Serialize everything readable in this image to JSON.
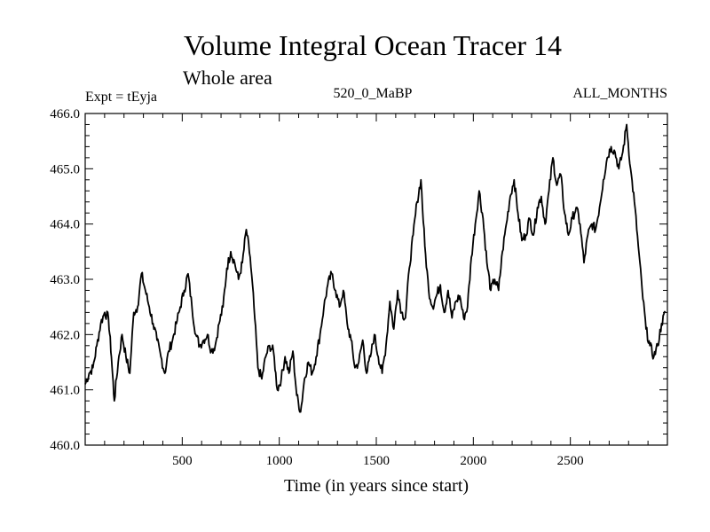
{
  "chart_data": {
    "type": "line",
    "title": "Volume Integral Ocean Tracer 14",
    "subtitle": "Whole area",
    "header_left": "Expt = tEyja",
    "header_center": "520_0_MaBP",
    "header_right": "ALL_MONTHS",
    "xlabel": "Time (in years since start)",
    "ylabel": "",
    "xlim": [
      0,
      3000
    ],
    "ylim": [
      460.0,
      466.0
    ],
    "x_ticks": [
      500,
      1000,
      1500,
      2000,
      2500
    ],
    "x_tick_labels": [
      "500",
      "1000",
      "1500",
      "2000",
      "2500"
    ],
    "y_ticks": [
      460.0,
      461.0,
      462.0,
      463.0,
      464.0,
      465.0,
      466.0
    ],
    "y_tick_labels": [
      "460.0",
      "461.0",
      "462.0",
      "463.0",
      "464.0",
      "465.0",
      "466.0"
    ],
    "grid": false,
    "series": [
      {
        "name": "tracer14",
        "color": "#000000",
        "x": [
          0,
          20,
          40,
          60,
          80,
          100,
          120,
          135,
          150,
          170,
          190,
          210,
          230,
          250,
          270,
          290,
          310,
          330,
          350,
          370,
          390,
          410,
          430,
          450,
          470,
          490,
          510,
          530,
          550,
          570,
          590,
          610,
          630,
          650,
          670,
          690,
          710,
          730,
          750,
          770,
          790,
          810,
          830,
          850,
          870,
          890,
          910,
          930,
          950,
          970,
          990,
          1010,
          1030,
          1050,
          1070,
          1090,
          1110,
          1130,
          1150,
          1170,
          1190,
          1210,
          1230,
          1250,
          1270,
          1290,
          1310,
          1330,
          1350,
          1370,
          1390,
          1410,
          1430,
          1450,
          1470,
          1490,
          1510,
          1530,
          1550,
          1570,
          1590,
          1610,
          1630,
          1650,
          1670,
          1690,
          1710,
          1730,
          1750,
          1770,
          1790,
          1810,
          1830,
          1850,
          1870,
          1890,
          1910,
          1930,
          1950,
          1970,
          1990,
          2010,
          2030,
          2050,
          2070,
          2090,
          2110,
          2130,
          2150,
          2170,
          2190,
          2210,
          2230,
          2250,
          2270,
          2290,
          2310,
          2330,
          2350,
          2370,
          2390,
          2410,
          2430,
          2450,
          2470,
          2490,
          2510,
          2530,
          2550,
          2570,
          2590,
          2610,
          2630,
          2650,
          2670,
          2690,
          2710,
          2730,
          2750,
          2770,
          2790,
          2810,
          2830,
          2850,
          2870,
          2890,
          2910,
          2930,
          2950,
          2970,
          2990
        ],
        "values": [
          461.1,
          461.3,
          461.4,
          461.8,
          462.2,
          462.4,
          462.3,
          461.6,
          460.8,
          461.5,
          462.0,
          461.6,
          461.3,
          462.4,
          462.5,
          463.1,
          462.8,
          462.5,
          462.2,
          461.9,
          461.6,
          461.3,
          461.7,
          461.9,
          462.2,
          462.5,
          462.8,
          463.1,
          462.5,
          462.0,
          461.8,
          461.9,
          462.0,
          461.7,
          461.8,
          462.2,
          462.5,
          463.2,
          463.5,
          463.3,
          463.0,
          463.3,
          463.9,
          463.4,
          462.5,
          461.4,
          461.2,
          461.6,
          461.8,
          461.7,
          461.0,
          461.2,
          461.6,
          461.3,
          461.7,
          460.9,
          460.6,
          461.2,
          461.5,
          461.3,
          461.6,
          462.0,
          462.5,
          462.9,
          463.1,
          462.8,
          462.5,
          462.8,
          462.2,
          461.9,
          461.4,
          461.5,
          461.9,
          461.3,
          461.6,
          462.0,
          461.6,
          461.3,
          461.8,
          462.6,
          462.1,
          462.8,
          462.4,
          462.3,
          463.2,
          463.8,
          464.4,
          464.8,
          463.6,
          462.8,
          462.5,
          462.7,
          462.9,
          462.4,
          462.8,
          462.3,
          462.6,
          462.7,
          462.3,
          462.5,
          463.4,
          464.0,
          464.6,
          464.1,
          463.3,
          462.8,
          463.0,
          462.8,
          463.5,
          464.0,
          464.5,
          464.8,
          464.2,
          463.7,
          463.8,
          464.1,
          463.8,
          464.3,
          464.5,
          464.0,
          464.6,
          465.2,
          464.7,
          464.9,
          464.2,
          463.8,
          464.1,
          464.3,
          464.0,
          463.3,
          463.8,
          464.0,
          463.9,
          464.3,
          464.8,
          465.2,
          465.4,
          465.3,
          465.0,
          465.3,
          465.8,
          465.0,
          464.4,
          463.6,
          462.8,
          462.1,
          461.8,
          461.6,
          461.8,
          462.2,
          462.4
        ]
      }
    ]
  }
}
